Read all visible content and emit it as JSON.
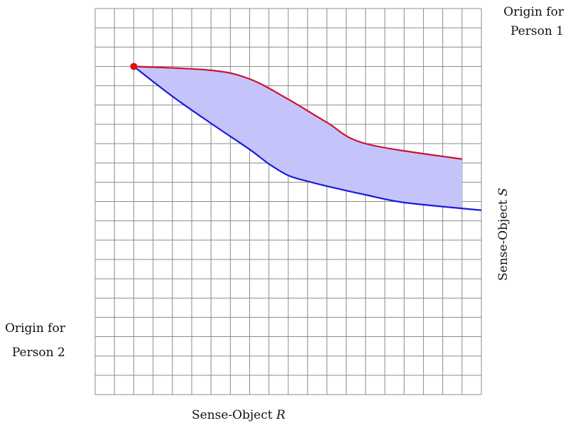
{
  "labels": {
    "origin_person1_line1": "Origin for",
    "origin_person1_line2": "Person 1",
    "origin_person2_line1": "Origin for",
    "origin_person2_line2": "Person 2",
    "x_axis_text": "Sense-Object",
    "x_axis_var": "R",
    "y_axis_text": "Sense-Object",
    "y_axis_var": "S"
  },
  "colors": {
    "grid": "#8c8c8c",
    "upper_curve": "#cc1133",
    "lower_curve": "#1a1adf",
    "lens_fill": "#c4c4fb",
    "endowment_point": "#dd1111"
  },
  "diagram": {
    "grid_cells_x": 20,
    "grid_cells_y": 20,
    "endowment_point": {
      "x": 2,
      "y": 17
    },
    "upper_curve": [
      [
        2,
        17
      ],
      [
        6,
        16.8
      ],
      [
        8,
        16.35
      ],
      [
        10,
        15.3
      ],
      [
        12,
        14.1
      ],
      [
        14,
        13
      ],
      [
        19,
        12.2
      ]
    ],
    "lower_curve": [
      [
        2,
        17
      ],
      [
        4,
        15.45
      ],
      [
        6,
        14.05
      ],
      [
        8,
        12.7
      ],
      [
        9,
        11.95
      ],
      [
        10,
        11.35
      ],
      [
        11,
        11.05
      ],
      [
        12,
        10.8
      ],
      [
        14,
        10.35
      ],
      [
        16,
        9.95
      ],
      [
        20,
        9.55
      ]
    ]
  }
}
